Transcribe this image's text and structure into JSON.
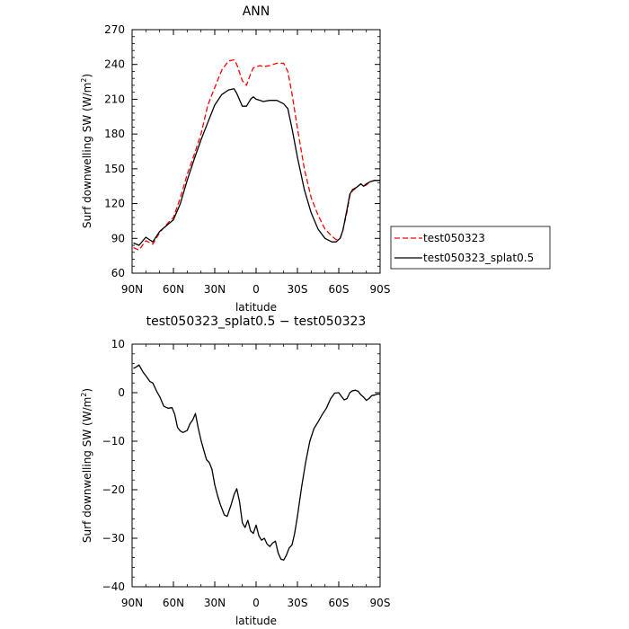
{
  "chart_data": [
    {
      "type": "line",
      "title": "ANN",
      "xlabel": "latitude",
      "ylabel": "Surf downwelling SW (W/m",
      "ylabel_sup": "2",
      "ylabel_close": ")",
      "xlim": [
        90,
        -90
      ],
      "ylim": [
        60,
        270
      ],
      "xticks": [
        90,
        60,
        30,
        0,
        -30,
        -60,
        -90
      ],
      "xtick_labels": [
        "90N",
        "60N",
        "30N",
        "0",
        "30S",
        "60S",
        "90S"
      ],
      "yticks": [
        60,
        90,
        120,
        150,
        180,
        210,
        240,
        270
      ],
      "ytick_labels": [
        "60",
        "90",
        "120",
        "150",
        "180",
        "210",
        "240",
        "270"
      ],
      "legend_position": "right-outside",
      "grid": false,
      "series": [
        {
          "name": "test050323",
          "color": "#ff0000",
          "dash": "dashed",
          "x": [
            89,
            85,
            80,
            75,
            70,
            65,
            60,
            55,
            50,
            45,
            40,
            35,
            30,
            25,
            20,
            16,
            14,
            10,
            7,
            4,
            2,
            0,
            -3,
            -5,
            -10,
            -15,
            -20,
            -23,
            -26,
            -30,
            -35,
            -40,
            -45,
            -50,
            -55,
            -58,
            -61,
            -63,
            -66,
            -68,
            -70,
            -73,
            -76,
            -78,
            -80,
            -83,
            -86,
            -90
          ],
          "y": [
            82,
            80,
            88,
            85,
            95,
            102,
            108,
            125,
            145,
            162,
            180,
            205,
            220,
            235,
            243,
            244,
            240,
            226,
            222,
            232,
            237,
            238,
            239,
            238,
            239,
            241,
            241,
            234,
            215,
            185,
            150,
            125,
            110,
            98,
            92,
            89,
            90,
            97,
            113,
            127,
            131,
            134,
            137,
            135,
            136,
            139,
            140,
            140
          ]
        },
        {
          "name": "test050323_splat0.5",
          "color": "#000000",
          "dash": "solid",
          "x": [
            89,
            85,
            80,
            75,
            70,
            65,
            60,
            55,
            50,
            45,
            40,
            35,
            30,
            25,
            20,
            16,
            14,
            10,
            7,
            4,
            2,
            0,
            -3,
            -5,
            -10,
            -15,
            -20,
            -23,
            -26,
            -30,
            -35,
            -40,
            -45,
            -50,
            -55,
            -58,
            -61,
            -63,
            -66,
            -68,
            -70,
            -73,
            -76,
            -78,
            -80,
            -83,
            -86,
            -90
          ],
          "y": [
            86,
            84,
            91,
            87,
            96,
            101,
            106,
            120,
            140,
            158,
            175,
            190,
            205,
            214,
            218,
            219,
            215,
            204,
            204,
            210,
            212,
            210,
            209,
            208,
            209,
            209,
            206,
            202,
            185,
            160,
            132,
            112,
            98,
            90,
            87,
            87,
            90,
            97,
            115,
            128,
            132,
            134,
            137,
            135,
            137,
            139,
            140,
            140
          ]
        }
      ]
    },
    {
      "type": "line",
      "title": "test050323_splat0.5 − test050323",
      "xlabel": "latitude",
      "ylabel": "Surf downwelling SW (W/m",
      "ylabel_sup": "2",
      "ylabel_close": ")",
      "xlim": [
        90,
        -90
      ],
      "ylim": [
        -40,
        10
      ],
      "xticks": [
        90,
        60,
        30,
        0,
        -30,
        -60,
        -90
      ],
      "xtick_labels": [
        "90N",
        "60N",
        "30N",
        "0",
        "30S",
        "60S",
        "90S"
      ],
      "yticks": [
        -40,
        -30,
        -20,
        -10,
        0,
        10
      ],
      "ytick_labels": [
        "−40",
        "−30",
        "−20",
        "−10",
        "0",
        "10"
      ],
      "grid": false,
      "series": [
        {
          "color": "#000000",
          "dash": "solid",
          "x": [
            89,
            87,
            85,
            82,
            80,
            77,
            75,
            72,
            70,
            67,
            64,
            61,
            59,
            57,
            55,
            53,
            50,
            48,
            46,
            44,
            42,
            40,
            38,
            36,
            34,
            32,
            30,
            28,
            26,
            23,
            21,
            18,
            16,
            14,
            12,
            10,
            8,
            6,
            4,
            2,
            0,
            -2,
            -4,
            -6,
            -8,
            -10,
            -12,
            -14,
            -16,
            -18,
            -20,
            -22,
            -24,
            -26,
            -28,
            -30,
            -33,
            -36,
            -39,
            -42,
            -45,
            -48,
            -51,
            -54,
            -57,
            -60,
            -62,
            -64,
            -66,
            -68,
            -70,
            -72,
            -74,
            -76,
            -78,
            -80,
            -82,
            -84,
            -86,
            -88,
            -90
          ],
          "y": [
            5,
            5.3,
            5.7,
            4.2,
            3.5,
            2.3,
            2,
            0.2,
            -0.8,
            -2.8,
            -3.2,
            -3.1,
            -4.5,
            -7.2,
            -7.9,
            -8.2,
            -7.8,
            -6.4,
            -5.6,
            -4.3,
            -7.3,
            -9.8,
            -11.8,
            -13.8,
            -14.4,
            -15.8,
            -19,
            -21.2,
            -23,
            -25.2,
            -25.5,
            -23,
            -21,
            -19.8,
            -22.5,
            -26.8,
            -27.8,
            -26.3,
            -28.5,
            -29,
            -27.3,
            -29.5,
            -30.4,
            -30,
            -31.2,
            -31.7,
            -31,
            -30.6,
            -33,
            -34.3,
            -34.5,
            -33.5,
            -32,
            -31.4,
            -29,
            -25.5,
            -19.5,
            -14.3,
            -10,
            -7.4,
            -6,
            -4.5,
            -3.2,
            -1.3,
            -0.1,
            0,
            -0.8,
            -1.5,
            -1.2,
            0,
            0.4,
            0.5,
            0.3,
            -0.4,
            -0.9,
            -1.6,
            -1.2,
            -0.6,
            -0.5,
            -0.3,
            -0.3
          ]
        }
      ]
    }
  ]
}
